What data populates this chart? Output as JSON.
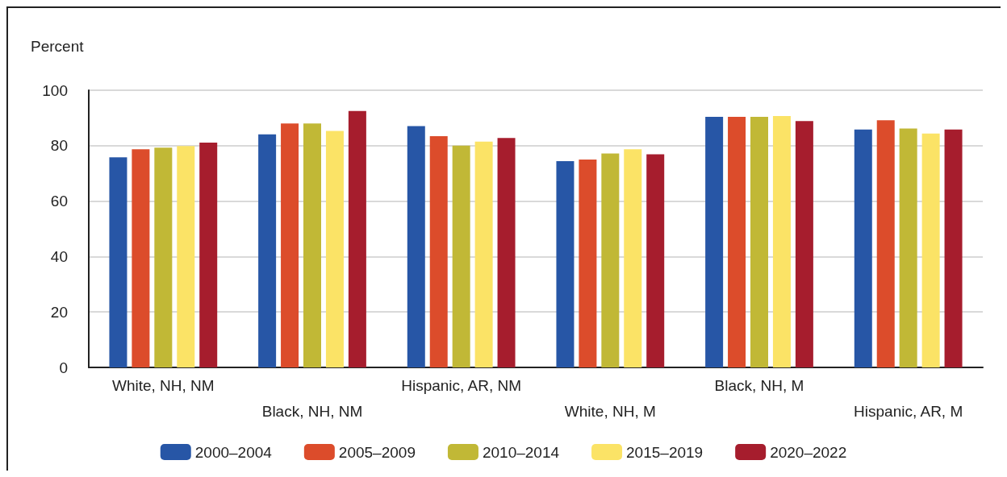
{
  "chart_data": {
    "type": "bar",
    "ylabel": "Percent",
    "categories": [
      "White, NH, NM",
      "Black, NH, NM",
      "Hispanic, AR, NM",
      "White, NH, M",
      "Black, NH, M",
      "Hispanic, AR, M"
    ],
    "series": [
      {
        "name": "2000–2004",
        "color": "#2756a6",
        "values": [
          75.8,
          84.1,
          87.1,
          74.4,
          90.4,
          85.8
        ]
      },
      {
        "name": "2005–2009",
        "color": "#dc4c2b",
        "values": [
          78.7,
          88.0,
          83.4,
          75.0,
          90.4,
          89.2
        ]
      },
      {
        "name": "2010–2014",
        "color": "#c1b836",
        "values": [
          79.3,
          88.0,
          80.0,
          77.2,
          90.4,
          86.2
        ]
      },
      {
        "name": "2015–2019",
        "color": "#fbe366",
        "values": [
          79.9,
          85.3,
          81.5,
          78.7,
          90.7,
          84.4
        ]
      },
      {
        "name": "2020–2022",
        "color": "#a61d2d",
        "values": [
          81.1,
          92.5,
          82.8,
          76.9,
          88.9,
          85.8
        ]
      }
    ],
    "ylim": [
      0,
      100
    ],
    "yticks": [
      0,
      20,
      40,
      60,
      80,
      100
    ],
    "grid": "y",
    "legend": "bottom"
  }
}
